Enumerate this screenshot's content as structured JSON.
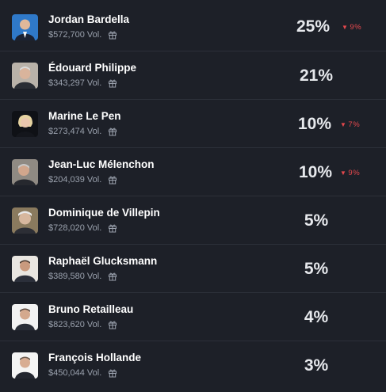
{
  "candidates": [
    {
      "name": "Jordan Bardella",
      "volume": "$572,700 Vol.",
      "percent": "25%",
      "change": "9%",
      "change_direction": "down",
      "avatar_bg": "#2f79c9"
    },
    {
      "name": "Édouard Philippe",
      "volume": "$343,297 Vol.",
      "percent": "21%",
      "change": "",
      "change_direction": "",
      "avatar_bg": "#b9b2a9"
    },
    {
      "name": "Marine Le Pen",
      "volume": "$273,474 Vol.",
      "percent": "10%",
      "change": "7%",
      "change_direction": "down",
      "avatar_bg": "#0f1116"
    },
    {
      "name": "Jean-Luc Mélenchon",
      "volume": "$204,039 Vol.",
      "percent": "10%",
      "change": "9%",
      "change_direction": "down",
      "avatar_bg": "#8f8a83"
    },
    {
      "name": "Dominique de Villepin",
      "volume": "$728,020 Vol.",
      "percent": "5%",
      "change": "",
      "change_direction": "",
      "avatar_bg": "#8a7a5e"
    },
    {
      "name": "Raphaël Glucksmann",
      "volume": "$389,580 Vol.",
      "percent": "5%",
      "change": "",
      "change_direction": "",
      "avatar_bg": "#e9e6e1"
    },
    {
      "name": "Bruno Retailleau",
      "volume": "$823,620 Vol.",
      "percent": "4%",
      "change": "",
      "change_direction": "",
      "avatar_bg": "#f2f2f2"
    },
    {
      "name": "François Hollande",
      "volume": "$450,044 Vol.",
      "percent": "3%",
      "change": "",
      "change_direction": "",
      "avatar_bg": "#f4f4f4"
    }
  ],
  "colors": {
    "background": "#1d2028",
    "divider": "#2c3039",
    "change_down": "#e5484d"
  },
  "icons": {
    "gift": "gift-icon",
    "down": "triangle-down-icon"
  }
}
